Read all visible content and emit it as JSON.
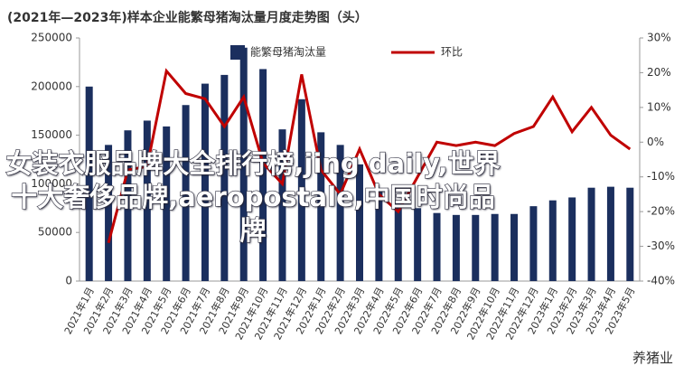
{
  "chart_data": {
    "type": "bar-line",
    "title": "(2021年—2023年)样本企业能繁母猪淘汰量月度走势图（头）",
    "categories": [
      "2021年1月",
      "2021年2月",
      "2021年3月",
      "2021年4月",
      "2021年5月",
      "2021年6月",
      "2021年7月",
      "2021年8月",
      "2021年9月",
      "2021年10月",
      "2021年11月",
      "2021年12月",
      "2022年1月",
      "2022年2月",
      "2022年3月",
      "2022年4月",
      "2022年5月",
      "2022年6月",
      "2022年7月",
      "2022年8月",
      "2022年9月",
      "2022年10月",
      "2022年11月",
      "2022年12月",
      "2023年1月",
      "2023年2月",
      "2023年3月",
      "2023年4月",
      "2023年5月"
    ],
    "series": [
      {
        "name": "能繁母猪淘汰量",
        "color": "#1b2f5e",
        "values": [
          200000,
          140000,
          155000,
          165000,
          159000,
          181000,
          203000,
          212000,
          240000,
          218000,
          156000,
          187000,
          153000,
          140000,
          120000,
          95000,
          80000,
          75000,
          70000,
          68000,
          68000,
          69000,
          69000,
          77000,
          83000,
          86000,
          96000,
          97000,
          96000
        ]
      },
      {
        "name": "环比",
        "color": "#c00000",
        "axis": "y2",
        "values": [
          null,
          -29,
          -8,
          -7,
          20.5,
          14,
          12.5,
          4.5,
          13,
          -6,
          -12,
          19.5,
          -8,
          -15,
          -2,
          -15,
          -20,
          -10,
          0,
          -1,
          0,
          -1,
          2.5,
          4.5,
          13,
          3,
          10,
          2,
          -2
        ]
      }
    ],
    "ylim": [
      0,
      250000
    ],
    "yticks": [
      0,
      50000,
      100000,
      150000,
      200000,
      250000
    ],
    "y2lim": [
      -40,
      30
    ],
    "y2ticks": [
      {
        "value": -40,
        "label": "-40%"
      },
      {
        "value": -30,
        "label": "-30%"
      },
      {
        "value": -20,
        "label": "-20%"
      },
      {
        "value": -10,
        "label": "-10%"
      },
      {
        "value": 0,
        "label": "0%"
      },
      {
        "value": 10,
        "label": "10%"
      },
      {
        "value": 20,
        "label": "20%"
      },
      {
        "value": 30,
        "label": "30%"
      }
    ]
  },
  "overlay_text": "女装衣服品牌大全排行榜,jing daily,世界十大奢侈品牌,aeropostale,中国时尚品牌",
  "watermark": "养猪业"
}
